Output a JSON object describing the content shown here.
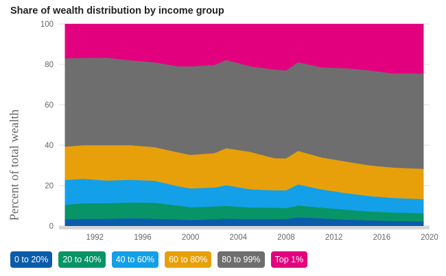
{
  "title": "Share of wealth distribution by income group",
  "chart_data": {
    "type": "area",
    "stacked": true,
    "title": "Share of wealth distribution by income group",
    "ylabel": "Percent of total wealth",
    "xlabel": "",
    "ylim": [
      0,
      100
    ],
    "xlim": [
      1989,
      2020
    ],
    "yticks": [
      0,
      20,
      40,
      60,
      80,
      100
    ],
    "xticks": [
      1992,
      1996,
      2000,
      2004,
      2008,
      2012,
      2016,
      2020
    ],
    "grid": true,
    "legend_position": "bottom",
    "x": [
      1989.5,
      1991,
      1993,
      1995,
      1997,
      1999,
      2000,
      2002,
      2003,
      2005,
      2007,
      2008,
      2009,
      2011,
      2013,
      2015,
      2017,
      2019.5
    ],
    "series": [
      {
        "name": "0 to 20%",
        "color": "#0a5cab",
        "values": [
          3.3,
          3.6,
          3.6,
          3.9,
          3.6,
          3.3,
          3.0,
          3.4,
          3.7,
          3.4,
          3.5,
          3.5,
          4.3,
          3.8,
          3.2,
          2.8,
          2.5,
          2.3
        ]
      },
      {
        "name": "20 to 40%",
        "color": "#079467",
        "values": [
          7.2,
          7.7,
          7.7,
          7.8,
          7.9,
          6.8,
          6.3,
          6.3,
          6.3,
          5.8,
          5.5,
          5.4,
          5.9,
          5.3,
          4.9,
          4.4,
          4.2,
          4.0
        ]
      },
      {
        "name": "40 to 60%",
        "color": "#13a0e8",
        "values": [
          12.3,
          12.1,
          11.2,
          11.2,
          10.9,
          9.6,
          9.3,
          9.4,
          10.2,
          9.0,
          8.7,
          8.8,
          10.4,
          9.0,
          8.2,
          7.6,
          7.2,
          7.0
        ]
      },
      {
        "name": "60 to 80%",
        "color": "#e8a00a",
        "values": [
          16.5,
          16.6,
          17.5,
          17.1,
          16.6,
          16.7,
          16.6,
          17.0,
          18.3,
          18.5,
          15.9,
          15.8,
          16.6,
          15.8,
          15.6,
          15.2,
          15.0,
          15.0
        ]
      },
      {
        "name": "80 to 99%",
        "color": "#6e6e6e",
        "values": [
          43.7,
          43.2,
          43.3,
          42.0,
          42.0,
          42.6,
          43.8,
          43.6,
          43.7,
          42.3,
          43.9,
          43.5,
          43.9,
          44.6,
          46.2,
          47.0,
          46.6,
          47.2
        ]
      },
      {
        "name": "Top 1%",
        "color": "#e3007f",
        "values": [
          17.0,
          16.8,
          16.7,
          18.0,
          19.0,
          21.0,
          21.0,
          20.3,
          17.8,
          21.0,
          22.5,
          23.0,
          18.9,
          21.5,
          21.9,
          23.0,
          24.5,
          24.5
        ]
      }
    ]
  },
  "legend": [
    {
      "label": "0 to 20%",
      "color": "#0a5cab"
    },
    {
      "label": "20 to 40%",
      "color": "#079467"
    },
    {
      "label": "40 to 60%",
      "color": "#13a0e8"
    },
    {
      "label": "60 to 80%",
      "color": "#e8a00a"
    },
    {
      "label": "80 to 99%",
      "color": "#6e6e6e"
    },
    {
      "label": "Top 1%",
      "color": "#e3007f"
    }
  ]
}
